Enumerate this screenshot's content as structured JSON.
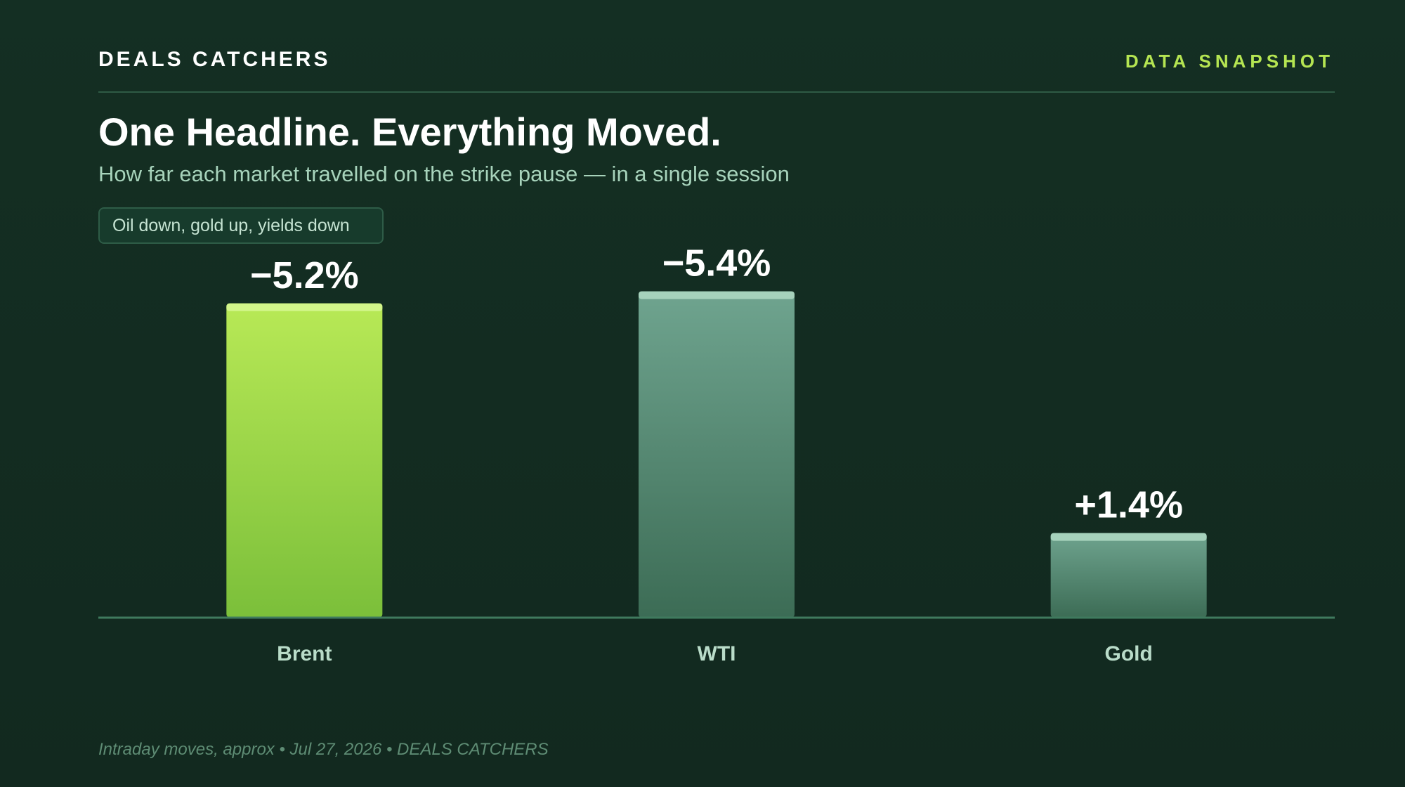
{
  "header": {
    "brand": "DEALS CATCHERS",
    "tag": "DATA SNAPSHOT"
  },
  "title": "One Headline. Everything Moved.",
  "subtitle": "How far each market travelled on the strike pause — in a single session",
  "callout": "Oil down, gold up, yields down",
  "footer": "Intraday moves, approx • Jul 27, 2026 • DEALS CATCHERS",
  "colors": {
    "accent": "#b5e552",
    "highlight_bar": "#a5db4a",
    "muted_bar": "#5c9a80"
  },
  "chart_data": {
    "type": "bar",
    "categories": [
      "Brent",
      "WTI",
      "Gold"
    ],
    "values": [
      -5.2,
      -5.4,
      1.4
    ],
    "value_labels": [
      "−5.2%",
      "−5.4%",
      "+1.4%"
    ],
    "bar_heights_by": "absolute value",
    "highlighted": "Brent",
    "title": "One Headline. Everything Moved.",
    "subtitle": "How far each market travelled on the strike pause — in a single session",
    "xlabel": "",
    "ylabel": "",
    "grid": false,
    "legend": "none"
  }
}
